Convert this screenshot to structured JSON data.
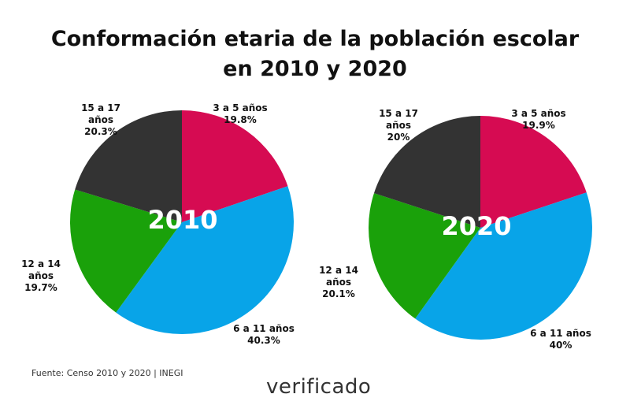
{
  "title_line1": "Conformación etaria de la población escolar",
  "title_line2": "en 2010 y 2020",
  "source": "Fuente: Censo 2010 y 2020 | INEGI",
  "logo": "verificado",
  "chart_data": [
    {
      "type": "pie",
      "center_label": "2010",
      "categories": [
        "3 a 5 años",
        "6 a 11 años",
        "12 a 14 años",
        "15 a 17 años"
      ],
      "values": [
        19.8,
        40.3,
        19.7,
        20.3
      ],
      "value_labels": [
        "19.8%",
        "40.3%",
        "19.7%",
        "20.3%"
      ],
      "colors": [
        "#d60b52",
        "#08a4e8",
        "#1aa10a",
        "#333333"
      ]
    },
    {
      "type": "pie",
      "center_label": "2020",
      "categories": [
        "3 a 5 años",
        "6 a 11 años",
        "12 a 14 años",
        "15 a 17 años"
      ],
      "values": [
        19.9,
        40,
        20.1,
        20
      ],
      "value_labels": [
        "19.9%",
        "40%",
        "20.1%",
        "20%"
      ],
      "colors": [
        "#d60b52",
        "#08a4e8",
        "#1aa10a",
        "#333333"
      ]
    }
  ]
}
